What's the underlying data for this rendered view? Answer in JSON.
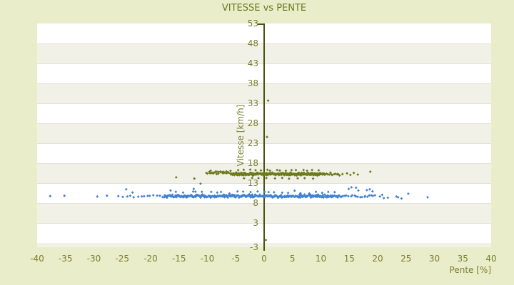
{
  "chart_data": {
    "type": "scatter",
    "title": "VITESSE vs PENTE",
    "xlabel": "Pente [%]",
    "ylabel": "Vitesse [km/h]",
    "xlim": [
      -40,
      40
    ],
    "ylim": [
      -3,
      53
    ],
    "x_ticks": [
      -40,
      -35,
      -30,
      -25,
      -20,
      -15,
      -10,
      -5,
      0,
      5,
      10,
      15,
      20,
      25,
      30,
      35,
      40
    ],
    "y_ticks": [
      53,
      48,
      43,
      38,
      33,
      28,
      23,
      18,
      13,
      8,
      3,
      -3
    ],
    "band_step": 5,
    "grid": true,
    "legend": "none",
    "colors": {
      "background": "#e9edca",
      "band_light": "#ffffff",
      "band_dark": "#f1f1e8",
      "grid": "#e2e2d7",
      "axis": "#49530f",
      "tick_text": "#78812e",
      "title_text": "#6b791d",
      "series_olive": "#6d7b1d",
      "series_blue": "#3f81d0"
    },
    "series": [
      {
        "name": "vitesse-olive",
        "color": "#6d7b1d",
        "marker": "diamond",
        "points": [
          [
            -15.5,
            14.5
          ],
          [
            -12.3,
            14.2
          ],
          [
            13.8,
            15.3
          ],
          [
            14.6,
            15.5
          ],
          [
            15.2,
            15.1
          ],
          [
            15.8,
            15.6
          ],
          [
            16.5,
            15.2
          ],
          [
            18.7,
            15.9
          ],
          [
            0.7,
            33.7
          ],
          [
            0.5,
            24.6
          ],
          [
            0.3,
            -1.2
          ]
        ],
        "clusters": [
          {
            "x0": -10.1,
            "x1": -5.9,
            "n": 26,
            "y": 15.7,
            "jy": 0.55,
            "jx": 0.12
          },
          {
            "x0": -5.8,
            "x1": 10.6,
            "n": 250,
            "y": 15.3,
            "jy": 0.42,
            "jx": 0.08
          },
          {
            "x0": -4.5,
            "x1": 9.5,
            "n": 16,
            "y": 16.3,
            "jy": 0.25,
            "jx": 0.5
          },
          {
            "x0": -3.5,
            "x1": 8.5,
            "n": 10,
            "y": 14.3,
            "jy": 0.2,
            "jx": 0.5
          },
          {
            "x0": 10.7,
            "x1": 13.3,
            "n": 12,
            "y": 15.3,
            "jy": 0.45,
            "jx": 0.15
          }
        ]
      },
      {
        "name": "vitesse-blue",
        "color": "#3f81d0",
        "marker": "diamond",
        "points": [
          [
            -37.7,
            9.8
          ],
          [
            -35.2,
            9.9
          ],
          [
            -29.4,
            9.7
          ],
          [
            -27.7,
            9.9
          ],
          [
            -25.7,
            9.8
          ],
          [
            -24.9,
            9.6
          ],
          [
            -24.3,
            11.5
          ],
          [
            -24.1,
            9.7
          ],
          [
            -23.6,
            9.9
          ],
          [
            -23.2,
            10.7
          ],
          [
            -23.0,
            9.5
          ],
          [
            -12.4,
            11.6
          ],
          [
            -11.2,
            12.9
          ],
          [
            14.9,
            11.6
          ],
          [
            15.4,
            12.0
          ],
          [
            16.2,
            11.9
          ],
          [
            16.6,
            11.2
          ],
          [
            18.1,
            11.3
          ],
          [
            18.6,
            11.5
          ],
          [
            19.1,
            11.0
          ],
          [
            20.4,
            9.7
          ],
          [
            20.8,
            10.1
          ],
          [
            21.1,
            9.3
          ],
          [
            21.8,
            9.4
          ],
          [
            23.3,
            9.7
          ],
          [
            23.6,
            9.5
          ],
          [
            24.2,
            9.2
          ],
          [
            25.4,
            10.4
          ],
          [
            28.8,
            9.5
          ]
        ],
        "clusters": [
          {
            "x0": -22.3,
            "x1": -17.7,
            "n": 9,
            "y": 9.8,
            "jy": 0.3,
            "jx": 0.3
          },
          {
            "x0": -17.6,
            "x1": 13.2,
            "n": 280,
            "y": 9.8,
            "jy": 0.45,
            "jx": 0.08
          },
          {
            "x0": -16.5,
            "x1": 12.5,
            "n": 26,
            "y": 10.8,
            "jy": 0.45,
            "jx": 0.6
          },
          {
            "x0": 13.3,
            "x1": 19.5,
            "n": 20,
            "y": 9.7,
            "jy": 0.4,
            "jx": 0.2
          }
        ]
      }
    ]
  }
}
